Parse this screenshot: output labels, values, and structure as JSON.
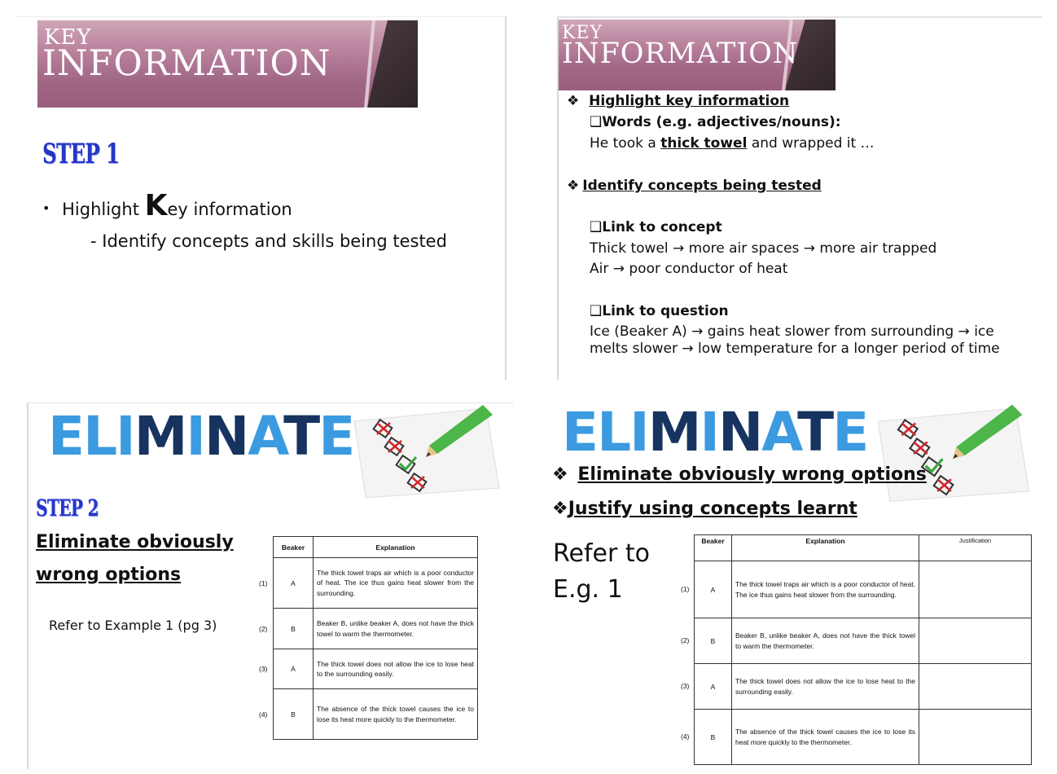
{
  "p1": {
    "banner_key": "KEY",
    "banner_info": "INFORMATION",
    "step": "STEP 1",
    "bullet_pre": "Highlight ",
    "bullet_big_k": "K",
    "bullet_post": "ey information",
    "sub": "- Identify concepts and skills being tested"
  },
  "p2": {
    "banner_key": "KEY",
    "banner_info": "INFORMATION",
    "h1_bullet": "❖",
    "h1": "Highlight key information",
    "words_box": "❑",
    "words": "Words (e.g. adjectives/nouns):",
    "ex_pre": "He took a ",
    "ex_kw": "thick towel",
    "ex_post": " and wrapped it …",
    "h2_bullet": "❖",
    "h2": "Identify concepts being tested",
    "link_concept_box": "❑",
    "link_concept": "Link to concept",
    "concept_l1": "Thick towel → more air spaces → more air trapped",
    "concept_l2": "Air → poor conductor of heat",
    "link_question_box": "❑",
    "link_question": "Link to question",
    "q_l1": "Ice (Beaker A) → gains heat slower from surrounding → ice",
    "q_l2": "melts slower → low temperature for a longer period of time"
  },
  "p3": {
    "eliminate": [
      "EL",
      "I",
      "M",
      "I",
      "N",
      "A",
      "T",
      "E"
    ],
    "step": "STEP 2",
    "heading_l1": "Eliminate obviously",
    "heading_l2": "wrong options",
    "refer": "Refer to Example 1 (pg 3)",
    "table": {
      "headers": [
        "Beaker",
        "Explanation"
      ],
      "rows": [
        {
          "num": "(1)",
          "beaker": "A",
          "text": "The thick towel traps air which is a poor conductor of heat. The ice thus gains heat slower from the surrounding."
        },
        {
          "num": "(2)",
          "beaker": "B",
          "text": "Beaker B, unlike beaker A, does not have the thick towel to warm the thermometer."
        },
        {
          "num": "(3)",
          "beaker": "A",
          "text": "The thick towel does not allow the ice to lose heat to the surrounding easily."
        },
        {
          "num": "(4)",
          "beaker": "B",
          "text": "The absence of the thick towel causes the ice to lose its heat more quickly to the thermometer."
        }
      ]
    }
  },
  "p4": {
    "eliminate": [
      "EL",
      "I",
      "M",
      "I",
      "N",
      "A",
      "T",
      "E"
    ],
    "b1_bullet": "❖",
    "b1": "Eliminate obviously wrong options",
    "b2_bullet": "❖",
    "b2": "Justify using concepts learnt",
    "refer_l1": "Refer to",
    "refer_l2": "E.g. 1",
    "table": {
      "headers": [
        "Beaker",
        "Explanation",
        "Justification"
      ],
      "rows": [
        {
          "num": "(1)",
          "beaker": "A",
          "text": "The thick towel traps air which is a poor conductor of heat. The ice thus gains heat slower from the surrounding.",
          "just": ""
        },
        {
          "num": "(2)",
          "beaker": "B",
          "text": "Beaker B, unlike beaker A, does not have the thick towel to warm the thermometer.",
          "just": ""
        },
        {
          "num": "(3)",
          "beaker": "A",
          "text": "The thick towel does not allow the ice to lose heat to the surrounding easily.",
          "just": ""
        },
        {
          "num": "(4)",
          "beaker": "B",
          "text": "The absence of the thick towel causes the ice to lose its heat more quickly to the thermometer.",
          "just": ""
        }
      ]
    }
  },
  "colors": {
    "step_blue": "#2536c8",
    "eliminate_light": "#3b9ae0",
    "eliminate_dark": "#16345f",
    "banner_mauve": "#a06785"
  }
}
